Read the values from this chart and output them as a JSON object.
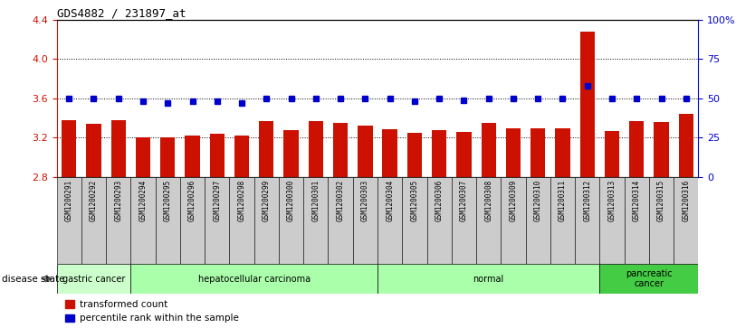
{
  "title": "GDS4882 / 231897_at",
  "samples": [
    "GSM1200291",
    "GSM1200292",
    "GSM1200293",
    "GSM1200294",
    "GSM1200295",
    "GSM1200296",
    "GSM1200297",
    "GSM1200298",
    "GSM1200299",
    "GSM1200300",
    "GSM1200301",
    "GSM1200302",
    "GSM1200303",
    "GSM1200304",
    "GSM1200305",
    "GSM1200306",
    "GSM1200307",
    "GSM1200308",
    "GSM1200309",
    "GSM1200310",
    "GSM1200311",
    "GSM1200312",
    "GSM1200313",
    "GSM1200314",
    "GSM1200315",
    "GSM1200316"
  ],
  "bar_values": [
    3.38,
    3.34,
    3.38,
    3.2,
    3.2,
    3.22,
    3.24,
    3.22,
    3.37,
    3.28,
    3.37,
    3.35,
    3.32,
    3.29,
    3.25,
    3.28,
    3.26,
    3.35,
    3.3,
    3.3,
    3.3,
    4.28,
    3.27,
    3.37,
    3.36,
    3.44
  ],
  "dot_values": [
    50,
    50,
    50,
    48,
    47,
    48,
    48,
    47,
    50,
    50,
    50,
    50,
    50,
    50,
    48,
    50,
    49,
    50,
    50,
    50,
    50,
    58,
    50,
    50,
    50,
    50
  ],
  "bar_color": "#cc1100",
  "dot_color": "#0000cc",
  "ylim_left": [
    2.8,
    4.4
  ],
  "ylim_right": [
    0,
    100
  ],
  "yticks_left": [
    2.8,
    3.2,
    3.6,
    4.0,
    4.4
  ],
  "yticks_right": [
    0,
    25,
    50,
    75,
    100
  ],
  "ytick_labels_right": [
    "0",
    "25",
    "50",
    "75",
    "100%"
  ],
  "group_starts": [
    0,
    3,
    13,
    22
  ],
  "group_ends": [
    3,
    13,
    22,
    26
  ],
  "group_labels": [
    "gastric cancer",
    "hepatocellular carcinoma",
    "normal",
    "pancreatic\ncancer"
  ],
  "group_colors": [
    "#ccffcc",
    "#aaddaa",
    "#88cc88",
    "#44bb44"
  ],
  "disease_state_label": "disease state",
  "legend_bar_label": "transformed count",
  "legend_dot_label": "percentile rank within the sample",
  "sample_box_color": "#cccccc",
  "left_axis_color": "#cc1100",
  "right_axis_color": "#0000cc"
}
